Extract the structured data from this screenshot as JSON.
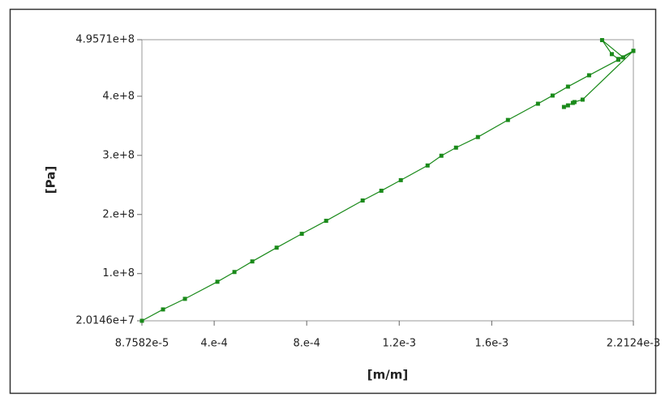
{
  "chart_data": {
    "type": "line",
    "x_label": "[m/m]",
    "y_label": "[Pa]",
    "xlim": [
      8.7582e-05,
      0.0022124
    ],
    "ylim": [
      20146000,
      495710000
    ],
    "xticks": [
      {
        "value": 8.7582e-05,
        "label": "8.7582e-5"
      },
      {
        "value": 0.0004,
        "label": "4.e-4"
      },
      {
        "value": 0.0008,
        "label": "8.e-4"
      },
      {
        "value": 0.0012,
        "label": "1.2e-3"
      },
      {
        "value": 0.0016,
        "label": "1.6e-3"
      },
      {
        "value": 0.0022124,
        "label": "2.2124e-3"
      }
    ],
    "yticks": [
      {
        "value": 20146000,
        "label": "2.0146e+7"
      },
      {
        "value": 100000000,
        "label": "1.e+8"
      },
      {
        "value": 200000000,
        "label": "2.e+8"
      },
      {
        "value": 300000000,
        "label": "3.e+8"
      },
      {
        "value": 400000000,
        "label": "4.e+8"
      },
      {
        "value": 495710000,
        "label": "4.9571e+8"
      }
    ],
    "series": [
      {
        "color": "#1a8a1a",
        "x": [
          8.7582e-05,
          0.0001788,
          0.0002736,
          0.0004139,
          0.0004876,
          0.0005648,
          0.0006701,
          0.0007788,
          0.0008841,
          0.001042,
          0.0011227,
          0.0012069,
          0.0013227,
          0.0013823,
          0.0014455,
          0.0015402,
          0.00167,
          0.0017999,
          0.0018631,
          0.0019297,
          0.0020209,
          0.0021473,
          0.0022124,
          0.0021683,
          0.0020771,
          0.0021192,
          0.0021473,
          0.0022124,
          0.0019929,
          0.0019578,
          0.0019508,
          0.0019297,
          0.0019122
        ],
        "values": [
          20146000,
          39400000,
          57300000,
          86200000,
          102700000,
          120600000,
          143900000,
          167300000,
          189300000,
          223700000,
          240200000,
          258100000,
          282900000,
          299400000,
          313100000,
          331000000,
          359900000,
          387400000,
          401200000,
          416300000,
          435500000,
          461700000,
          476800000,
          465800000,
          495000000,
          471300000,
          463100000,
          476800000,
          394300000,
          390200000,
          388800000,
          384600000,
          381900000
        ]
      }
    ]
  }
}
